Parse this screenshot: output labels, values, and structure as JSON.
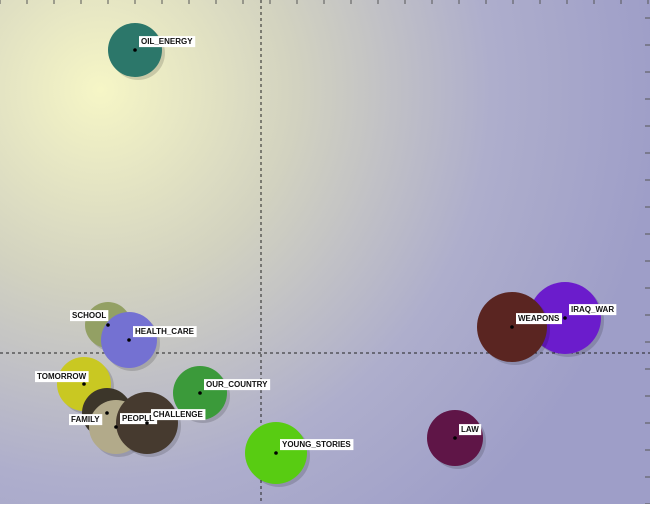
{
  "chart_data": {
    "type": "bubble",
    "labels": [
      "OIL_ENERGY",
      "SCHOOL",
      "HEALTH_CARE",
      "TOMORROW",
      "FAMILY",
      "PEOPLE",
      "CHALLENGE",
      "OUR_COUNTRY",
      "YOUNG_STORIES",
      "LAW",
      "IRAQ_WAR",
      "WEAPONS"
    ],
    "x": [
      135,
      108,
      129,
      84,
      107,
      116,
      147,
      200,
      276,
      455,
      565,
      512
    ],
    "values": [
      454,
      179,
      164,
      120,
      91,
      77,
      81,
      111,
      51,
      66,
      186,
      177
    ],
    "sizes": [
      27,
      23,
      28,
      27,
      25,
      27,
      31,
      27,
      31,
      28,
      36,
      35
    ],
    "colors": [
      "#2c776a",
      "#93a064",
      "#7471d2",
      "#c9c822",
      "#3c362a",
      "#b2aa8a",
      "#463a2f",
      "#3b9a3a",
      "#58cc12",
      "#5f1547",
      "#6b1ccc",
      "#5a2521"
    ],
    "xlim": [
      0,
      650
    ],
    "ylim": [
      0,
      504
    ],
    "xticks": [
      0,
      27,
      54,
      81,
      108,
      135,
      162,
      189,
      216,
      243,
      270,
      297,
      324,
      351,
      378,
      405,
      432,
      459,
      486,
      513,
      540,
      567,
      594,
      621,
      648
    ],
    "yticks": [
      0,
      27,
      54,
      81,
      108,
      135,
      162,
      189,
      216,
      243,
      270,
      297,
      324,
      351,
      378,
      405,
      432,
      459,
      486
    ],
    "xref": 261,
    "yref": 151
  }
}
